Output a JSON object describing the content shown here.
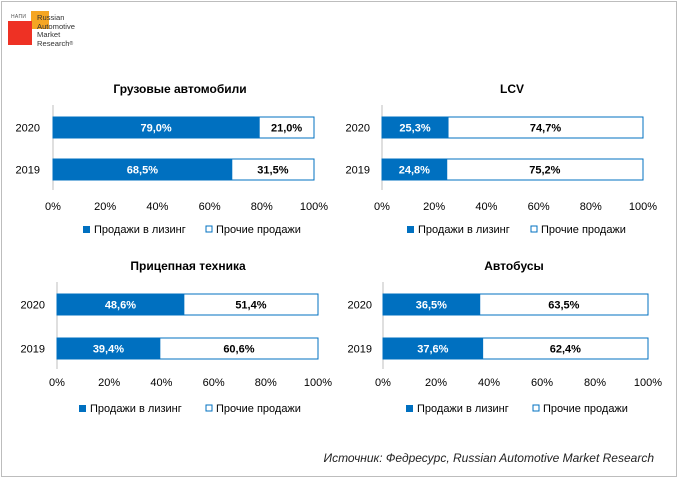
{
  "logo": {
    "abbr": "НАПИ",
    "lines": [
      "Russian",
      "Automotive",
      "Market",
      "Research"
    ],
    "registered": "®"
  },
  "source_text": "Источник: Федресурс, Russian Automotive Market Research",
  "colors": {
    "leasing": "#0070c0",
    "other": "#ffffff",
    "border": "#0070c0"
  },
  "legend": {
    "leasing": "Продажи в лизинг",
    "other": "Прочие продажи"
  },
  "chart_data": [
    {
      "type": "bar",
      "orientation": "horizontal",
      "stacked": true,
      "title": "Грузовые автомобили",
      "categories": [
        "2020",
        "2019"
      ],
      "series": [
        {
          "name": "Продажи в лизинг",
          "values": [
            79.0,
            68.5
          ],
          "labels": [
            "79,0%",
            "68,5%"
          ]
        },
        {
          "name": "Прочие продажи",
          "values": [
            21.0,
            31.5
          ],
          "labels": [
            "21,0%",
            "31,5%"
          ]
        }
      ],
      "xlim": [
        0,
        100
      ],
      "xticks": [
        "0%",
        "20%",
        "40%",
        "60%",
        "80%",
        "100%"
      ],
      "legend_position": "bottom"
    },
    {
      "type": "bar",
      "orientation": "horizontal",
      "stacked": true,
      "title": "LCV",
      "categories": [
        "2020",
        "2019"
      ],
      "series": [
        {
          "name": "Продажи в лизинг",
          "values": [
            25.3,
            24.8
          ],
          "labels": [
            "25,3%",
            "24,8%"
          ]
        },
        {
          "name": "Прочие продажи",
          "values": [
            74.7,
            75.2
          ],
          "labels": [
            "74,7%",
            "75,2%"
          ]
        }
      ],
      "xlim": [
        0,
        100
      ],
      "xticks": [
        "0%",
        "20%",
        "40%",
        "60%",
        "80%",
        "100%"
      ],
      "legend_position": "bottom"
    },
    {
      "type": "bar",
      "orientation": "horizontal",
      "stacked": true,
      "title": "Прицепная техника",
      "categories": [
        "2020",
        "2019"
      ],
      "series": [
        {
          "name": "Продажи в лизинг",
          "values": [
            48.6,
            39.4
          ],
          "labels": [
            "48,6%",
            "39,4%"
          ]
        },
        {
          "name": "Прочие продажи",
          "values": [
            51.4,
            60.6
          ],
          "labels": [
            "51,4%",
            "60,6%"
          ]
        }
      ],
      "xlim": [
        0,
        100
      ],
      "xticks": [
        "0%",
        "20%",
        "40%",
        "60%",
        "80%",
        "100%"
      ],
      "legend_position": "bottom"
    },
    {
      "type": "bar",
      "orientation": "horizontal",
      "stacked": true,
      "title": "Автобусы",
      "categories": [
        "2020",
        "2019"
      ],
      "series": [
        {
          "name": "Продажи в лизинг",
          "values": [
            36.5,
            37.6
          ],
          "labels": [
            "36,5%",
            "37,6%"
          ]
        },
        {
          "name": "Прочие продажи",
          "values": [
            63.5,
            62.4
          ],
          "labels": [
            "63,5%",
            "62,4%"
          ]
        }
      ],
      "xlim": [
        0,
        100
      ],
      "xticks": [
        "0%",
        "20%",
        "40%",
        "60%",
        "80%",
        "100%"
      ],
      "legend_position": "bottom"
    }
  ]
}
